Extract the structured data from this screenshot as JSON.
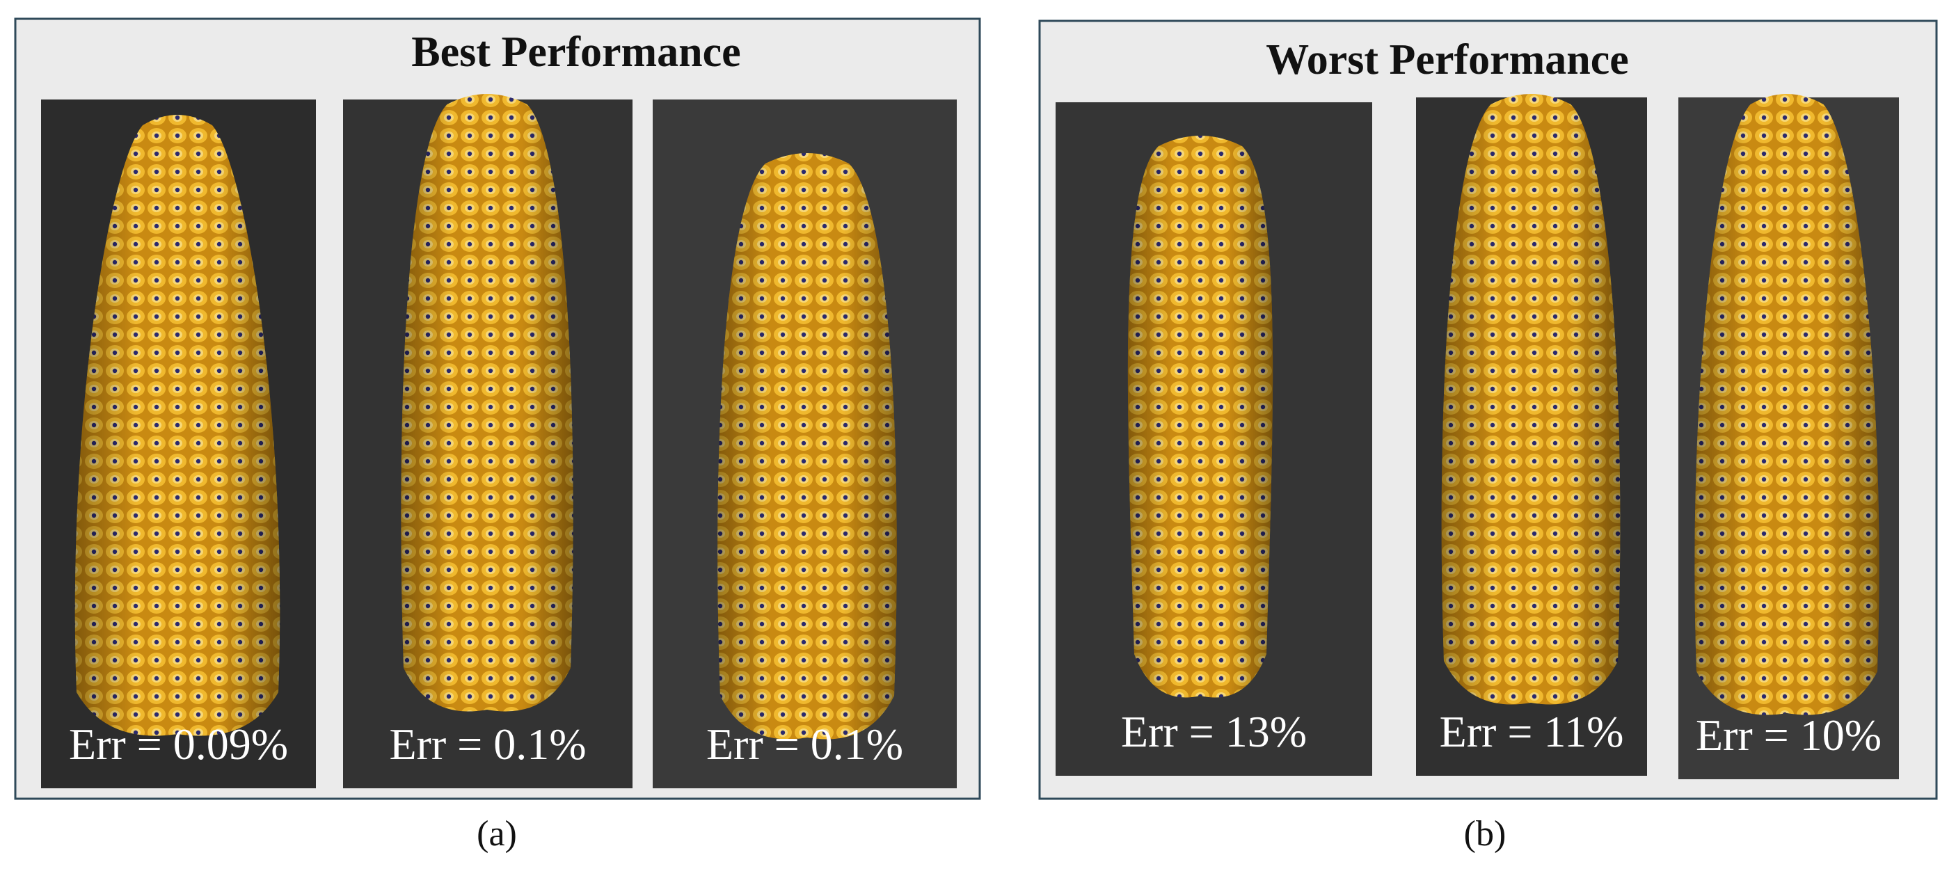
{
  "panels": [
    {
      "title": "Best Performance",
      "images": [
        {
          "label": "Err = 0.09%"
        },
        {
          "label": "Err = 0.1%"
        },
        {
          "label": "Err = 0.1%"
        }
      ]
    },
    {
      "title": "Worst Performance",
      "images": [
        {
          "label": "Err = 13%"
        },
        {
          "label": "Err = 11%"
        },
        {
          "label": "Err = 10%"
        }
      ]
    }
  ],
  "captions": [
    "(a)",
    "(b)"
  ]
}
